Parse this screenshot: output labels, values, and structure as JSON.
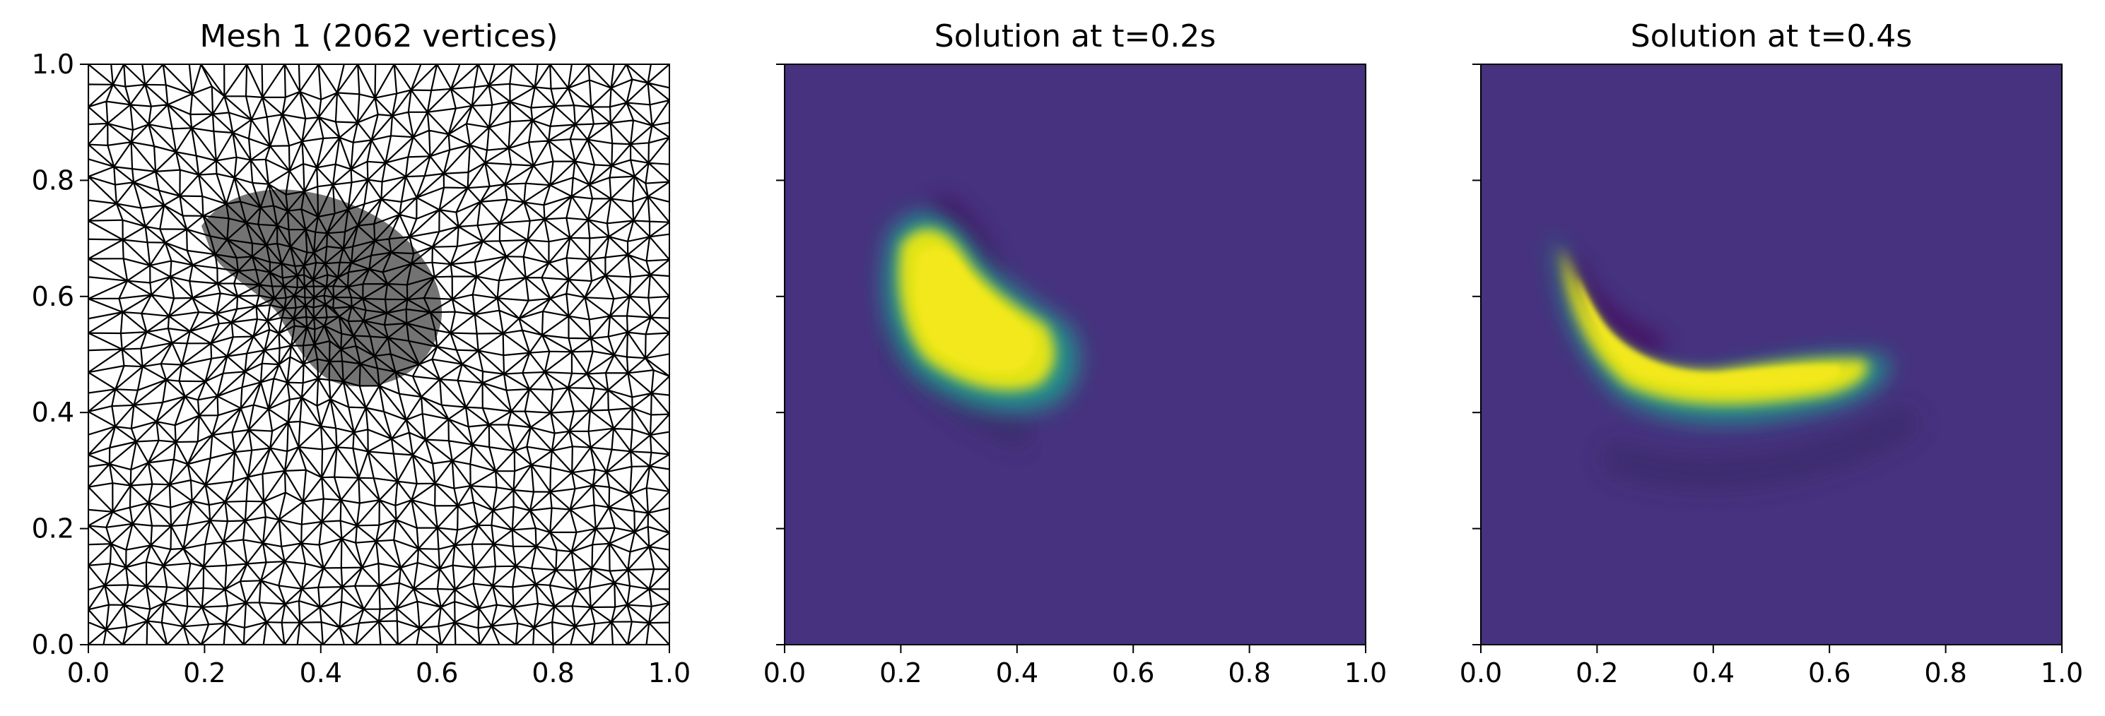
{
  "chart_data": [
    {
      "type": "other",
      "kind": "triangular-mesh",
      "title": "Mesh 1 (2062 vertices)",
      "xlabel": "",
      "ylabel": "",
      "xlim": [
        0.0,
        1.0
      ],
      "ylim": [
        0.0,
        1.0
      ],
      "xticks": [
        "0.0",
        "0.2",
        "0.4",
        "0.6",
        "0.8",
        "1.0"
      ],
      "yticks": [
        "0.0",
        "0.2",
        "0.4",
        "0.6",
        "0.8",
        "1.0"
      ],
      "vertices": 2062,
      "grid": false,
      "line_color": "#000000",
      "refined_region": {
        "shape": "crescent",
        "center": [
          0.38,
          0.6
        ],
        "approx_extent_x": [
          0.15,
          0.6
        ],
        "approx_extent_y": [
          0.4,
          0.77
        ]
      }
    },
    {
      "type": "heatmap",
      "title": "Solution at t=0.2s",
      "xlabel": "",
      "ylabel": "",
      "xlim": [
        0.0,
        1.0
      ],
      "ylim": [
        0.0,
        1.0
      ],
      "xticks": [
        "0.0",
        "0.2",
        "0.4",
        "0.6",
        "0.8",
        "1.0"
      ],
      "yticks": [],
      "colormap": "viridis",
      "grid": false,
      "colors": {
        "low": "#440154",
        "background": "#46327e",
        "mid": "#21918c",
        "high": "#e4e419"
      },
      "feature": {
        "shape": "crescent blob",
        "approx_extent_x": [
          0.17,
          0.5
        ],
        "approx_extent_y": [
          0.43,
          0.73
        ]
      }
    },
    {
      "type": "heatmap",
      "title": "Solution at t=0.4s",
      "xlabel": "",
      "ylabel": "",
      "xlim": [
        0.0,
        1.0
      ],
      "ylim": [
        0.0,
        1.0
      ],
      "xticks": [
        "0.0",
        "0.2",
        "0.4",
        "0.6",
        "0.8",
        "1.0"
      ],
      "yticks": [],
      "colormap": "viridis",
      "grid": false,
      "colors": {
        "low": "#440154",
        "background": "#46327e",
        "mid": "#21918c",
        "high": "#e4e419"
      },
      "feature": {
        "shape": "banana-shaped arc",
        "approx_extent_x": [
          0.1,
          0.6
        ],
        "approx_extent_y": [
          0.33,
          0.7
        ]
      }
    }
  ]
}
